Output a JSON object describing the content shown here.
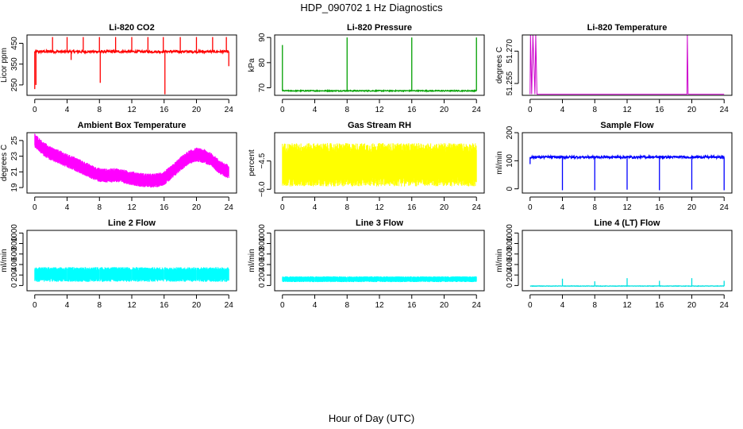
{
  "figure": {
    "title": "HDP_090702  1 Hz Diagnostics",
    "xlabel": "Hour of Day (UTC)"
  },
  "chart_data": [
    {
      "type": "line",
      "title": "Li-820 CO2",
      "ylabel": "Licor ppm",
      "color": "#ff0000",
      "xlim": [
        0,
        24
      ],
      "ylim": [
        200,
        490
      ],
      "xticks": [
        0,
        4,
        8,
        12,
        16,
        20,
        24
      ],
      "yticks": [
        250,
        350,
        450
      ],
      "yticklabels": [
        "250",
        "350",
        "450"
      ],
      "baseline": 410,
      "noise": 6,
      "spikes": [
        {
          "x": 0.0,
          "y": 230
        },
        {
          "x": 0.15,
          "y": 250
        },
        {
          "x": 2.2,
          "y": 480
        },
        {
          "x": 4.0,
          "y": 480
        },
        {
          "x": 4.5,
          "y": 370
        },
        {
          "x": 6.0,
          "y": 480
        },
        {
          "x": 8.0,
          "y": 480
        },
        {
          "x": 8.1,
          "y": 260
        },
        {
          "x": 10.0,
          "y": 480
        },
        {
          "x": 12.0,
          "y": 480
        },
        {
          "x": 14.0,
          "y": 480
        },
        {
          "x": 15.9,
          "y": 480
        },
        {
          "x": 16.1,
          "y": 205
        },
        {
          "x": 18.0,
          "y": 480
        },
        {
          "x": 20.0,
          "y": 480
        },
        {
          "x": 22.0,
          "y": 480
        },
        {
          "x": 23.7,
          "y": 480
        },
        {
          "x": 24.0,
          "y": 340
        }
      ]
    },
    {
      "type": "line",
      "title": "Li-820 Pressure",
      "ylabel": "kPa",
      "color": "#00a000",
      "xlim": [
        0,
        24
      ],
      "ylim": [
        67,
        91
      ],
      "xticks": [
        0,
        4,
        8,
        12,
        16,
        20,
        24
      ],
      "yticks": [
        70,
        80,
        90
      ],
      "yticklabels": [
        "70",
        "80",
        "90"
      ],
      "baseline": 68.8,
      "noise": 0.2,
      "spikes": [
        {
          "x": 0.0,
          "y": 87
        },
        {
          "x": 8.0,
          "y": 90
        },
        {
          "x": 16.0,
          "y": 90
        },
        {
          "x": 24.0,
          "y": 90
        }
      ]
    },
    {
      "type": "line",
      "title": "Li-820 Temperature",
      "ylabel": "degrees C",
      "color": "#cc00cc",
      "xlim": [
        0,
        24
      ],
      "ylim": [
        51.2495,
        51.2775
      ],
      "xticks": [
        0,
        4,
        8,
        12,
        16,
        20,
        24
      ],
      "yticks": [
        51.255,
        51.27
      ],
      "yticklabels": [
        "51.255",
        "51.270"
      ],
      "steps": [
        {
          "x": 0.0,
          "y": 51.25
        },
        {
          "x": 0.05,
          "y": 51.2775
        },
        {
          "x": 0.2,
          "y": 51.25
        },
        {
          "x": 0.35,
          "y": 51.2775
        },
        {
          "x": 0.6,
          "y": 51.25
        },
        {
          "x": 0.7,
          "y": 51.2775
        },
        {
          "x": 0.85,
          "y": 51.25
        },
        {
          "x": 19.4,
          "y": 51.25
        },
        {
          "x": 19.45,
          "y": 51.2775
        },
        {
          "x": 19.55,
          "y": 51.25
        },
        {
          "x": 24.0,
          "y": 51.25
        }
      ]
    },
    {
      "type": "band",
      "title": "Ambient Box Temperature",
      "ylabel": "degrees C",
      "color": "#ff00ff",
      "xlim": [
        0,
        24
      ],
      "ylim": [
        18.3,
        26.0
      ],
      "xticks": [
        0,
        4,
        8,
        12,
        16,
        20,
        24
      ],
      "yticks": [
        19,
        21,
        23,
        25
      ],
      "yticklabels": [
        "19",
        "21",
        "23",
        "25"
      ],
      "x": [
        0,
        1,
        2,
        3,
        4,
        5,
        6,
        7,
        8,
        9,
        10,
        11,
        12,
        13,
        14,
        15,
        16,
        17,
        18,
        19,
        20,
        21,
        22,
        23,
        24
      ],
      "center": [
        25.0,
        24.0,
        23.3,
        22.9,
        22.4,
        22.0,
        21.5,
        21.0,
        20.6,
        20.5,
        20.6,
        20.4,
        20.2,
        20.0,
        19.9,
        19.9,
        20.2,
        21.0,
        22.0,
        22.8,
        23.2,
        23.0,
        22.4,
        21.5,
        21.0
      ],
      "halfwidth": 0.9
    },
    {
      "type": "band",
      "title": "Gas Stream RH",
      "ylabel": "percent",
      "color": "#ffff00",
      "xlim": [
        0,
        24
      ],
      "ylim": [
        -6.2,
        -3.0
      ],
      "xticks": [
        0,
        4,
        8,
        12,
        16,
        20,
        24
      ],
      "yticks": [
        -6.0,
        -4.5
      ],
      "yticklabels": [
        "−6.0",
        "−4.5"
      ],
      "x": [
        0,
        24
      ],
      "center": [
        -4.7,
        -4.7
      ],
      "halfwidth": 1.15
    },
    {
      "type": "line",
      "title": "Sample Flow",
      "ylabel": "ml/min",
      "color": "#0000ff",
      "xlim": [
        0,
        24
      ],
      "ylim": [
        -15,
        200
      ],
      "xticks": [
        0,
        4,
        8,
        12,
        16,
        20,
        24
      ],
      "yticks": [
        0,
        100,
        200
      ],
      "yticklabels": [
        "0",
        "100",
        "200"
      ],
      "baseline": 113,
      "noise": 4,
      "spikes": [
        {
          "x": 0.0,
          "y": 88
        },
        {
          "x": 4.0,
          "y": -5
        },
        {
          "x": 8.0,
          "y": -5
        },
        {
          "x": 12.0,
          "y": -3
        },
        {
          "x": 16.0,
          "y": -5
        },
        {
          "x": 20.0,
          "y": -3
        },
        {
          "x": 24.0,
          "y": -5
        }
      ]
    },
    {
      "type": "band",
      "title": "Line 2 Flow",
      "ylabel": "ml/min",
      "color": "#00ffff",
      "xlim": [
        0,
        24
      ],
      "ylim": [
        -100,
        1050
      ],
      "xticks": [
        0,
        4,
        8,
        12,
        16,
        20,
        24
      ],
      "yticks": [
        0,
        200,
        400,
        600,
        800,
        1000
      ],
      "yticklabels": [
        "0",
        "200",
        "400",
        "600",
        "800",
        "1000"
      ],
      "x": [
        0,
        24
      ],
      "center": [
        210,
        210
      ],
      "halfwidth": 140,
      "gaps": [
        4,
        8,
        12,
        16,
        20
      ]
    },
    {
      "type": "band",
      "title": "Line 3 Flow",
      "ylabel": "ml/min",
      "color": "#00ffff",
      "xlim": [
        0,
        24
      ],
      "ylim": [
        -100,
        1050
      ],
      "xticks": [
        0,
        4,
        8,
        12,
        16,
        20,
        24
      ],
      "yticks": [
        0,
        200,
        400,
        600,
        800,
        1000
      ],
      "yticklabels": [
        "0",
        "200",
        "400",
        "600",
        "800",
        "1000"
      ],
      "x": [
        0,
        24
      ],
      "center": [
        120,
        120
      ],
      "halfwidth": 55,
      "gaps": [
        4,
        8,
        12,
        16,
        20
      ]
    },
    {
      "type": "line",
      "title": "Line 4 (LT) Flow",
      "ylabel": "ml/min",
      "color": "#00e0e0",
      "xlim": [
        0,
        24
      ],
      "ylim": [
        -100,
        1050
      ],
      "xticks": [
        0,
        4,
        8,
        12,
        16,
        20,
        24
      ],
      "yticks": [
        0,
        200,
        400,
        600,
        800,
        1000
      ],
      "yticklabels": [
        "0",
        "200",
        "400",
        "600",
        "800",
        "1000"
      ],
      "baseline": -10,
      "noise": 4,
      "spikes": [
        {
          "x": 4.0,
          "y": 130
        },
        {
          "x": 8.0,
          "y": 80
        },
        {
          "x": 12.0,
          "y": 140
        },
        {
          "x": 16.0,
          "y": 90
        },
        {
          "x": 20.0,
          "y": 140
        },
        {
          "x": 24.0,
          "y": 90
        }
      ]
    }
  ]
}
